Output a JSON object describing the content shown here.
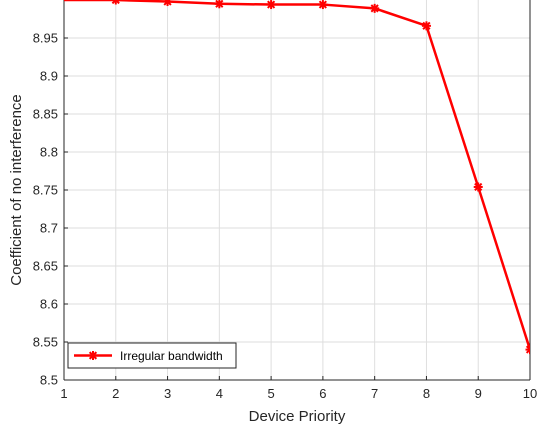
{
  "chart_data": {
    "type": "line",
    "xlabel": "Device Priority",
    "ylabel": "Coefficient of no interference",
    "xlim": [
      1,
      10
    ],
    "ylim": [
      8.5,
      9.0
    ],
    "x_ticks": [
      "1",
      "2",
      "3",
      "4",
      "5",
      "6",
      "7",
      "8",
      "9",
      "10"
    ],
    "y_ticks": [
      "8.5",
      "8.55",
      "8.6",
      "8.65",
      "8.7",
      "8.75",
      "8.8",
      "8.85",
      "8.9",
      "8.95"
    ],
    "grid": true,
    "legend_position": "bottom-left",
    "series": [
      {
        "name": "Irregular bandwidth",
        "color": "#ff0000",
        "marker": "asterisk",
        "x": [
          1,
          2,
          3,
          4,
          5,
          6,
          7,
          8,
          9,
          10
        ],
        "y": [
          9.0,
          9.0,
          8.998,
          8.995,
          8.994,
          8.994,
          8.989,
          8.966,
          8.754,
          8.54
        ]
      }
    ]
  }
}
